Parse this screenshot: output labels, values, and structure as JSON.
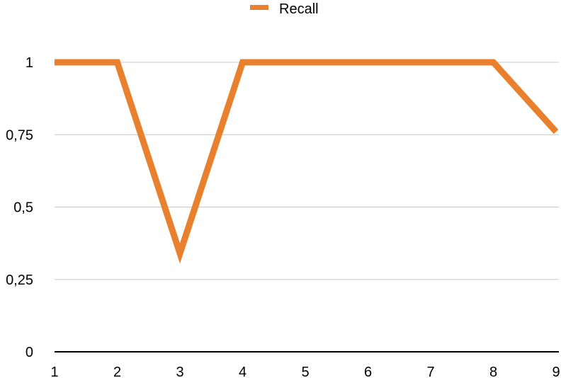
{
  "chart_data": {
    "type": "line",
    "x": [
      1,
      2,
      3,
      4,
      5,
      6,
      7,
      8,
      9
    ],
    "x_tick_labels": [
      "1",
      "2",
      "3",
      "4",
      "5",
      "6",
      "7",
      "8",
      "9"
    ],
    "y_ticks": [
      0,
      0.25,
      0.5,
      0.75,
      1
    ],
    "y_tick_labels": [
      "0",
      "0,25",
      "0,5",
      "0,75",
      "1"
    ],
    "ylim": [
      0,
      1
    ],
    "xlim": [
      1,
      9
    ],
    "grid": true,
    "legend_position": "top-center",
    "series": [
      {
        "name": "Recall",
        "color": "#E8802E",
        "values": [
          1,
          1,
          0.34,
          1,
          1,
          1,
          1,
          1,
          0.76
        ]
      }
    ],
    "colors": {
      "gridline": "#C8C8C8",
      "axis": "#000000"
    }
  }
}
